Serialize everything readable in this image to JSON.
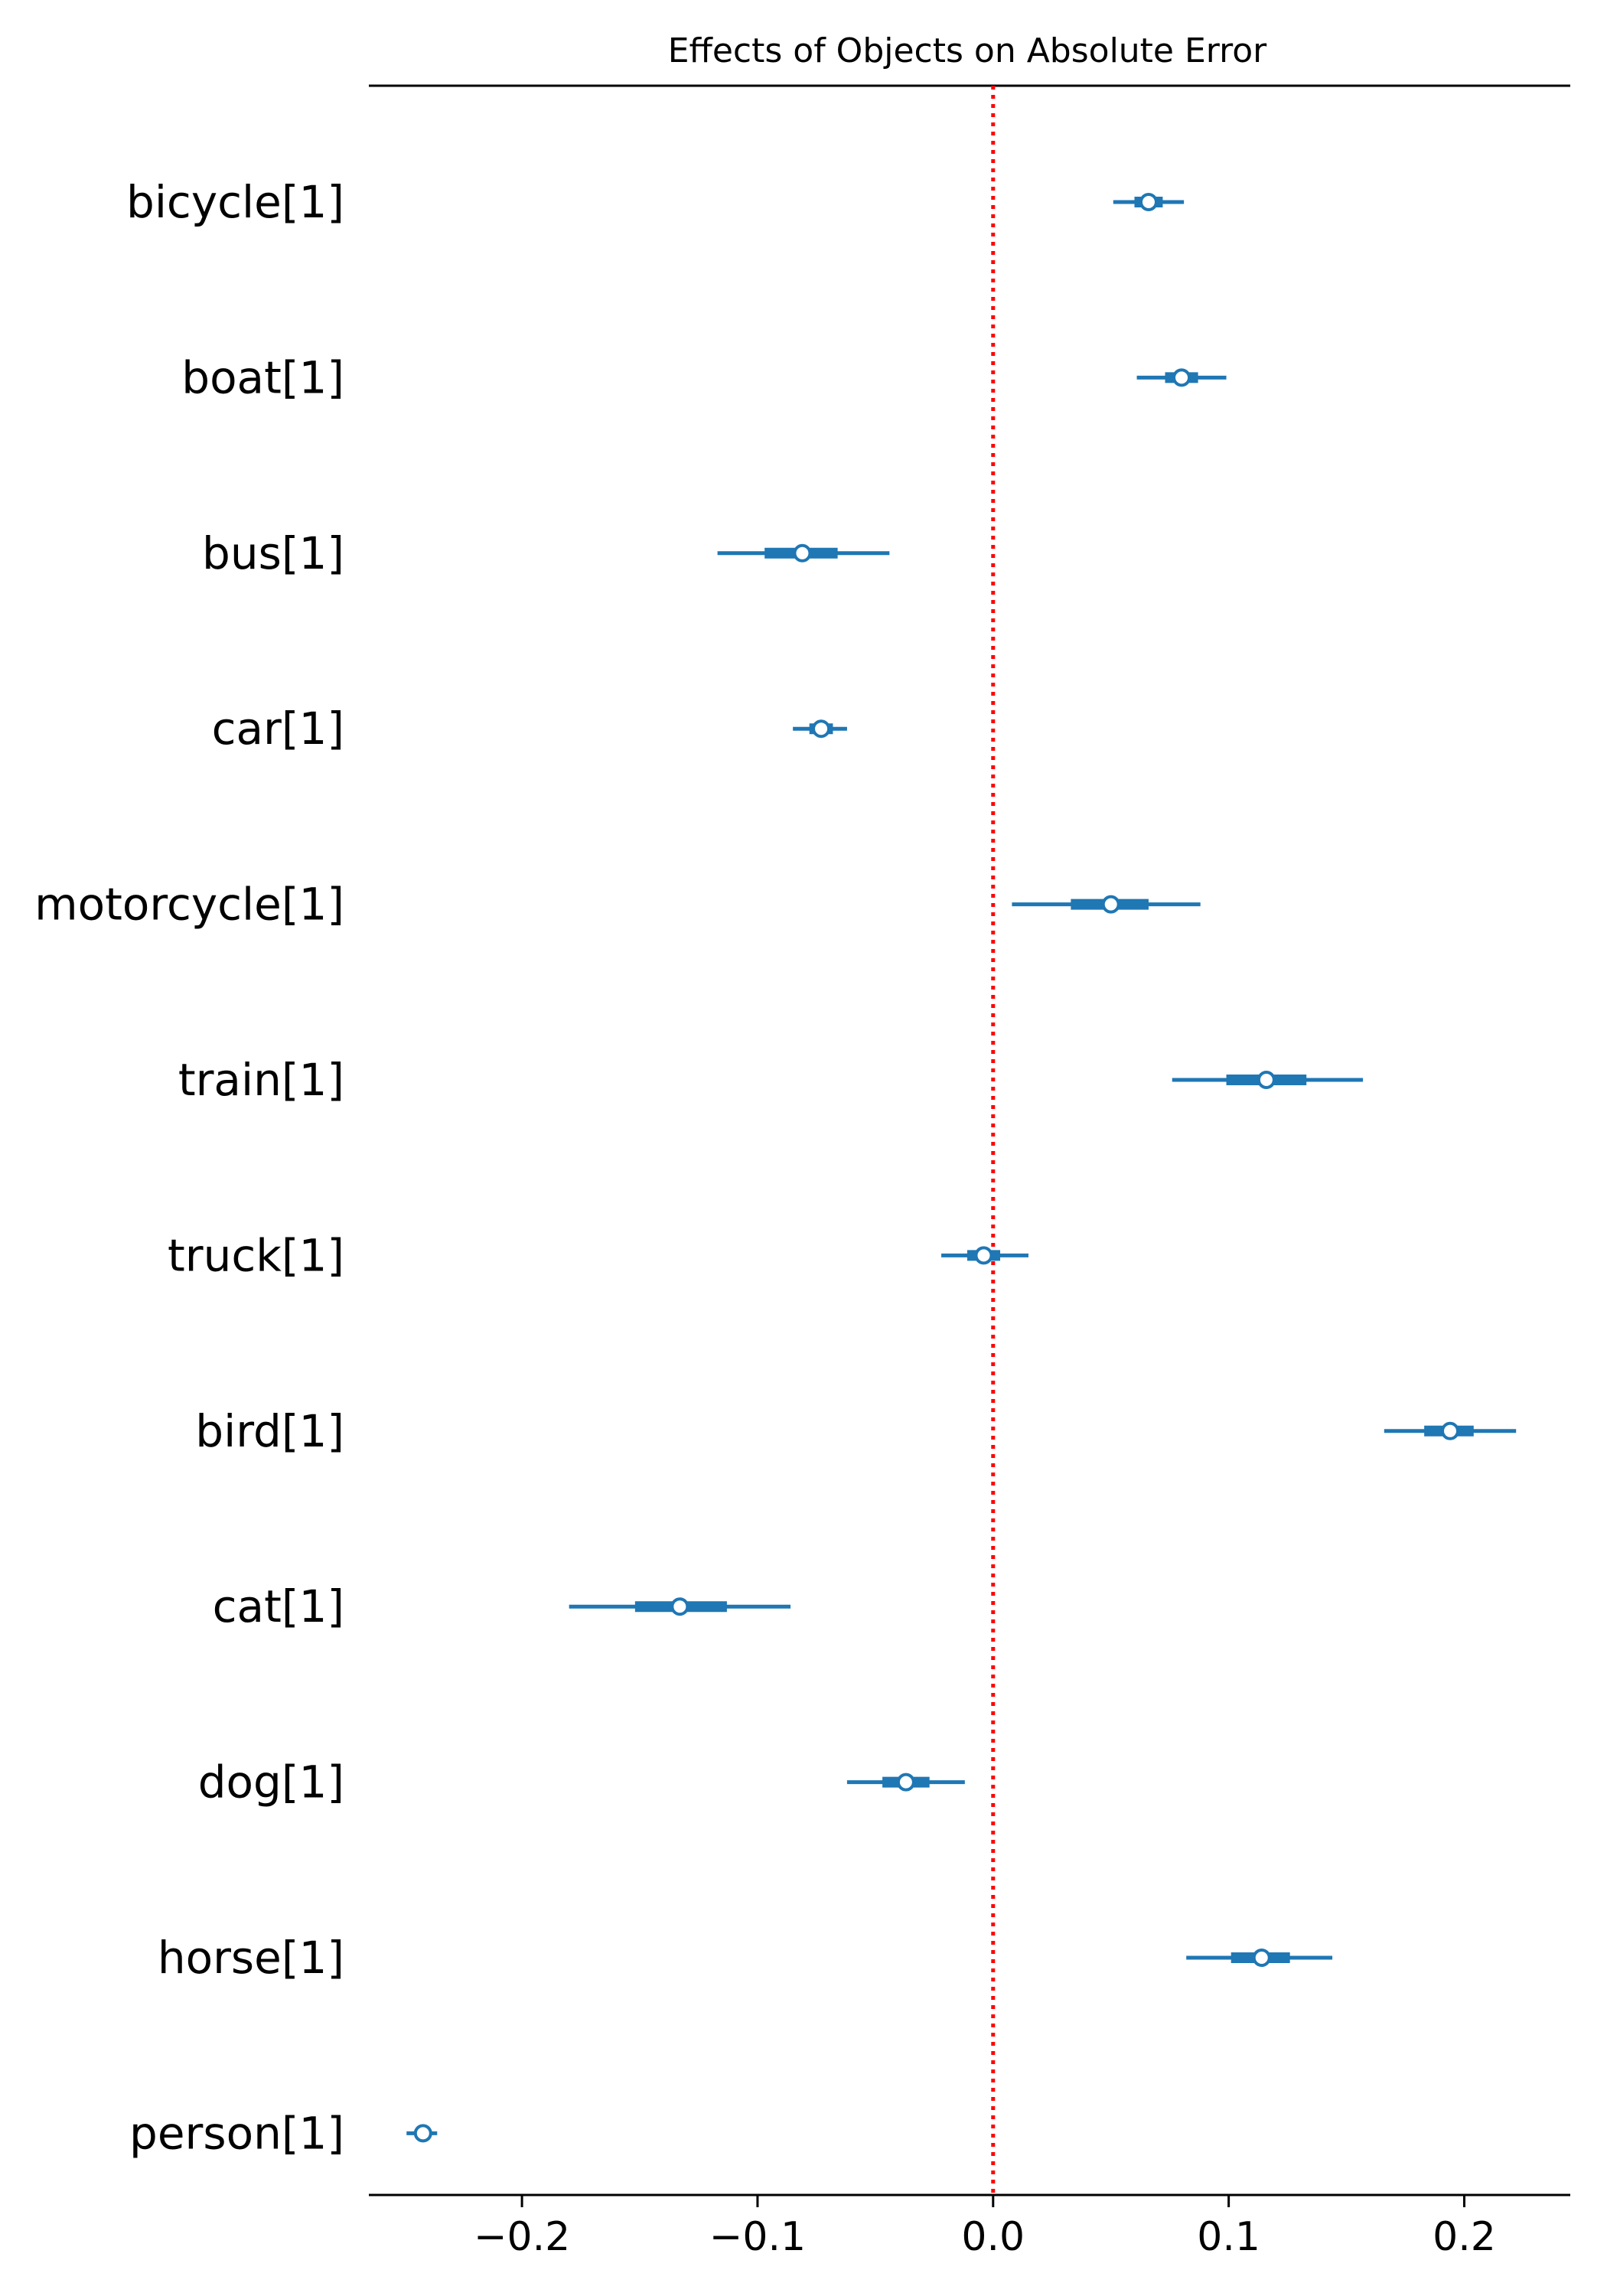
{
  "chart_data": {
    "type": "forest",
    "title": "Effects of Objects on Absolute Error",
    "xlabel": "",
    "ylabel": "",
    "xlim": [
      -0.265,
      0.245
    ],
    "xticks": [
      -0.2,
      -0.1,
      0.0,
      0.1,
      0.2
    ],
    "xtick_labels": [
      "−0.2",
      "−0.1",
      "0.0",
      "0.1",
      "0.2"
    ],
    "reference_line": {
      "x": 0.0,
      "color": "#ff0000",
      "style": "dotted"
    },
    "series_color": "#1f77b4",
    "variables": [
      {
        "label": "bicycle[1]",
        "mean": 0.066,
        "hdi_low": 0.051,
        "hdi_high": 0.081,
        "iqr_low": 0.06,
        "iqr_high": 0.072
      },
      {
        "label": "boat[1]",
        "mean": 0.08,
        "hdi_low": 0.061,
        "hdi_high": 0.099,
        "iqr_low": 0.073,
        "iqr_high": 0.087
      },
      {
        "label": "bus[1]",
        "mean": -0.081,
        "hdi_low": -0.117,
        "hdi_high": -0.044,
        "iqr_low": -0.097,
        "iqr_high": -0.066
      },
      {
        "label": "car[1]",
        "mean": -0.073,
        "hdi_low": -0.085,
        "hdi_high": -0.062,
        "iqr_low": -0.078,
        "iqr_high": -0.068
      },
      {
        "label": "motorcycle[1]",
        "mean": 0.05,
        "hdi_low": 0.008,
        "hdi_high": 0.088,
        "iqr_low": 0.033,
        "iqr_high": 0.066
      },
      {
        "label": "train[1]",
        "mean": 0.116,
        "hdi_low": 0.076,
        "hdi_high": 0.157,
        "iqr_low": 0.099,
        "iqr_high": 0.133
      },
      {
        "label": "truck[1]",
        "mean": -0.004,
        "hdi_low": -0.022,
        "hdi_high": 0.015,
        "iqr_low": -0.011,
        "iqr_high": 0.003
      },
      {
        "label": "bird[1]",
        "mean": 0.194,
        "hdi_low": 0.166,
        "hdi_high": 0.222,
        "iqr_low": 0.183,
        "iqr_high": 0.204
      },
      {
        "label": "cat[1]",
        "mean": -0.133,
        "hdi_low": -0.18,
        "hdi_high": -0.086,
        "iqr_low": -0.152,
        "iqr_high": -0.113
      },
      {
        "label": "dog[1]",
        "mean": -0.037,
        "hdi_low": -0.062,
        "hdi_high": -0.012,
        "iqr_low": -0.047,
        "iqr_high": -0.027
      },
      {
        "label": "horse[1]",
        "mean": 0.114,
        "hdi_low": 0.082,
        "hdi_high": 0.144,
        "iqr_low": 0.101,
        "iqr_high": 0.126
      },
      {
        "label": "person[1]",
        "mean": -0.242,
        "hdi_low": -0.249,
        "hdi_high": -0.236,
        "iqr_low": -0.245,
        "iqr_high": -0.24
      }
    ]
  }
}
